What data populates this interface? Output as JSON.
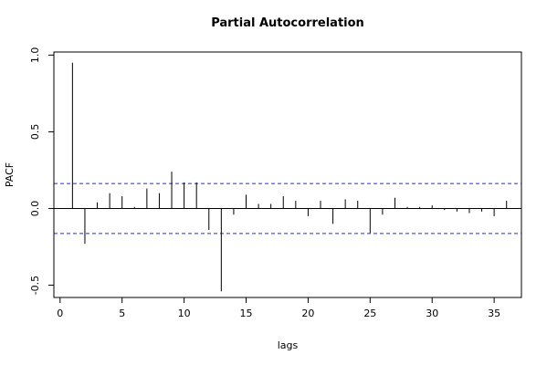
{
  "chart_data": {
    "type": "bar",
    "title": "Partial Autocorrelation",
    "xlabel": "lags",
    "ylabel": "PACF",
    "xlim": [
      -0.5,
      37.2
    ],
    "ylim": [
      -0.58,
      1.02
    ],
    "xticks": [
      0,
      5,
      10,
      15,
      20,
      25,
      30,
      35
    ],
    "yticks": [
      -0.5,
      0.0,
      0.5,
      1.0
    ],
    "ytick_labels": [
      "-0.5",
      "0.0",
      "0.5",
      "1.0"
    ],
    "confidence_bound": 0.163,
    "lags": [
      1,
      2,
      3,
      4,
      5,
      6,
      7,
      8,
      9,
      10,
      11,
      12,
      13,
      14,
      15,
      16,
      17,
      18,
      19,
      20,
      21,
      22,
      23,
      24,
      25,
      26,
      27,
      28,
      29,
      30,
      31,
      32,
      33,
      34,
      35,
      36
    ],
    "values": [
      0.95,
      -0.23,
      0.04,
      0.1,
      0.08,
      0.01,
      0.13,
      0.1,
      0.24,
      0.17,
      0.17,
      -0.14,
      -0.54,
      -0.04,
      0.09,
      0.03,
      0.03,
      0.08,
      0.05,
      -0.05,
      0.05,
      -0.1,
      0.06,
      0.05,
      -0.16,
      -0.04,
      0.07,
      0.01,
      0.01,
      0.02,
      -0.01,
      -0.02,
      -0.03,
      -0.02,
      -0.05,
      0.05
    ],
    "grid": false,
    "colors": {
      "spike": "#000000",
      "confidence": "#2b2bd6"
    }
  }
}
